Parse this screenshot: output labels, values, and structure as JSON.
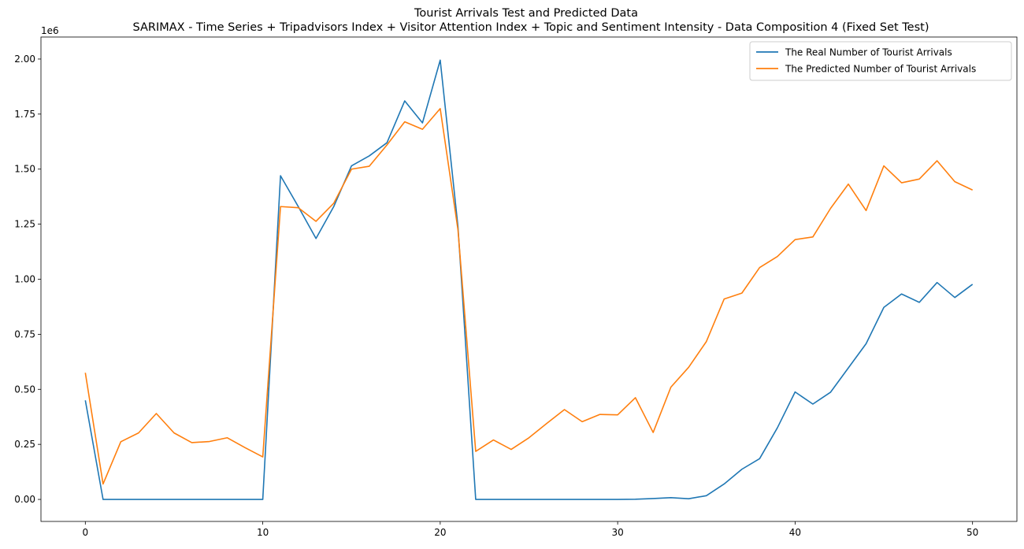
{
  "chart_data": {
    "type": "line",
    "title": "Tourist Arrivals Test and Predicted Data",
    "subtitle": "SARIMAX - Time Series + Tripadvisors Index + Visitor Attention Index + Topic and Sentiment Intensity - Data Composition 4 (Fixed Set Test)",
    "xlabel": "",
    "ylabel": "",
    "y_offset_label": "1e6",
    "xlim": [
      -2.5,
      52.5
    ],
    "ylim": [
      -100000,
      2100000
    ],
    "x_ticks": [
      0,
      10,
      20,
      30,
      40,
      50
    ],
    "y_ticks": [
      0,
      250000,
      500000,
      750000,
      1000000,
      1250000,
      1500000,
      1750000,
      2000000
    ],
    "x_tick_labels": [
      "0",
      "10",
      "20",
      "30",
      "40",
      "50"
    ],
    "y_tick_labels": [
      "0.00",
      "0.25",
      "0.50",
      "0.75",
      "1.00",
      "1.25",
      "1.50",
      "1.75",
      "2.00"
    ],
    "grid": false,
    "legend_position": "top-right",
    "x": [
      0,
      1,
      2,
      3,
      4,
      5,
      6,
      7,
      8,
      9,
      10,
      11,
      12,
      13,
      14,
      15,
      16,
      17,
      18,
      19,
      20,
      21,
      22,
      23,
      24,
      25,
      26,
      27,
      28,
      29,
      30,
      31,
      32,
      33,
      34,
      35,
      36,
      37,
      38,
      39,
      40,
      41,
      42,
      43,
      44,
      45,
      46,
      47,
      48,
      49,
      50
    ],
    "series": [
      {
        "name": "The Real Number of Tourist Arrivals",
        "color": "#1f77b4",
        "values": [
          450000,
          0,
          0,
          0,
          0,
          0,
          0,
          0,
          0,
          0,
          0,
          1470000,
          1330000,
          1185000,
          1330000,
          1515000,
          1560000,
          1620000,
          1810000,
          1710000,
          1995000,
          1240000,
          0,
          0,
          0,
          0,
          0,
          0,
          0,
          0,
          0,
          1000,
          4000,
          8000,
          3000,
          17000,
          70000,
          137000,
          185000,
          325000,
          488000,
          433000,
          487000,
          597000,
          707000,
          872000,
          933000,
          895000,
          985000,
          917000,
          977000
        ]
      },
      {
        "name": "The Predicted Number of Tourist Arrivals",
        "color": "#ff7f0e",
        "values": [
          575000,
          70000,
          262000,
          302000,
          390000,
          302000,
          258000,
          263000,
          280000,
          235000,
          193000,
          1330000,
          1325000,
          1263000,
          1345000,
          1500000,
          1513000,
          1610000,
          1715000,
          1681000,
          1775000,
          1225000,
          218000,
          270000,
          227000,
          280000,
          345000,
          408000,
          353000,
          386000,
          384000,
          462000,
          304000,
          510000,
          600000,
          717000,
          910000,
          937000,
          1053000,
          1103000,
          1180000,
          1192000,
          1322000,
          1432000,
          1312000,
          1515000,
          1438000,
          1455000,
          1538000,
          1443000,
          1405000
        ]
      }
    ]
  }
}
